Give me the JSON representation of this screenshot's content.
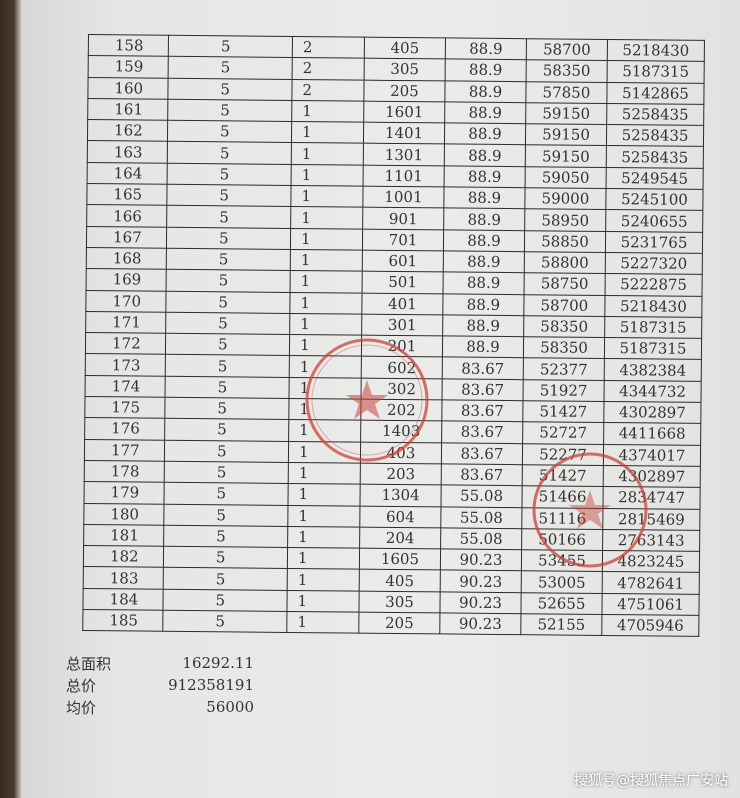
{
  "table": {
    "rows": [
      [
        "158",
        "5",
        "2",
        "405",
        "88.9",
        "58700",
        "5218430"
      ],
      [
        "159",
        "5",
        "2",
        "305",
        "88.9",
        "58350",
        "5187315"
      ],
      [
        "160",
        "5",
        "2",
        "205",
        "88.9",
        "57850",
        "5142865"
      ],
      [
        "161",
        "5",
        "1",
        "1601",
        "88.9",
        "59150",
        "5258435"
      ],
      [
        "162",
        "5",
        "1",
        "1401",
        "88.9",
        "59150",
        "5258435"
      ],
      [
        "163",
        "5",
        "1",
        "1301",
        "88.9",
        "59150",
        "5258435"
      ],
      [
        "164",
        "5",
        "1",
        "1101",
        "88.9",
        "59050",
        "5249545"
      ],
      [
        "165",
        "5",
        "1",
        "1001",
        "88.9",
        "59000",
        "5245100"
      ],
      [
        "166",
        "5",
        "1",
        "901",
        "88.9",
        "58950",
        "5240655"
      ],
      [
        "167",
        "5",
        "1",
        "701",
        "88.9",
        "58850",
        "5231765"
      ],
      [
        "168",
        "5",
        "1",
        "601",
        "88.9",
        "58800",
        "5227320"
      ],
      [
        "169",
        "5",
        "1",
        "501",
        "88.9",
        "58750",
        "5222875"
      ],
      [
        "170",
        "5",
        "1",
        "401",
        "88.9",
        "58700",
        "5218430"
      ],
      [
        "171",
        "5",
        "1",
        "301",
        "88.9",
        "58350",
        "5187315"
      ],
      [
        "172",
        "5",
        "1",
        "201",
        "88.9",
        "58350",
        "5187315"
      ],
      [
        "173",
        "5",
        "1",
        "602",
        "83.67",
        "52377",
        "4382384"
      ],
      [
        "174",
        "5",
        "1",
        "302",
        "83.67",
        "51927",
        "4344732"
      ],
      [
        "175",
        "5",
        "1",
        "202",
        "83.67",
        "51427",
        "4302897"
      ],
      [
        "176",
        "5",
        "1",
        "1403",
        "83.67",
        "52727",
        "4411668"
      ],
      [
        "177",
        "5",
        "1",
        "403",
        "83.67",
        "52277",
        "4374017"
      ],
      [
        "178",
        "5",
        "1",
        "203",
        "83.67",
        "51427",
        "4302897"
      ],
      [
        "179",
        "5",
        "1",
        "1304",
        "55.08",
        "51466",
        "2834747"
      ],
      [
        "180",
        "5",
        "1",
        "604",
        "55.08",
        "51116",
        "2815469"
      ],
      [
        "181",
        "5",
        "1",
        "204",
        "55.08",
        "50166",
        "2763143"
      ],
      [
        "182",
        "5",
        "1",
        "1605",
        "90.23",
        "53455",
        "4823245"
      ],
      [
        "183",
        "5",
        "1",
        "405",
        "90.23",
        "53005",
        "4782641"
      ],
      [
        "184",
        "5",
        "1",
        "305",
        "90.23",
        "52655",
        "4751061"
      ],
      [
        "185",
        "5",
        "1",
        "205",
        "90.23",
        "52155",
        "4705946"
      ]
    ]
  },
  "summary": {
    "total_area_label": "总面积",
    "total_area": "16292.11",
    "total_price_label": "总价",
    "total_price": "912358191",
    "avg_price_label": "均价",
    "avg_price": "56000"
  },
  "stamp_color": "#c8433a",
  "watermark": "搜狐号@搜狐焦点广安站"
}
